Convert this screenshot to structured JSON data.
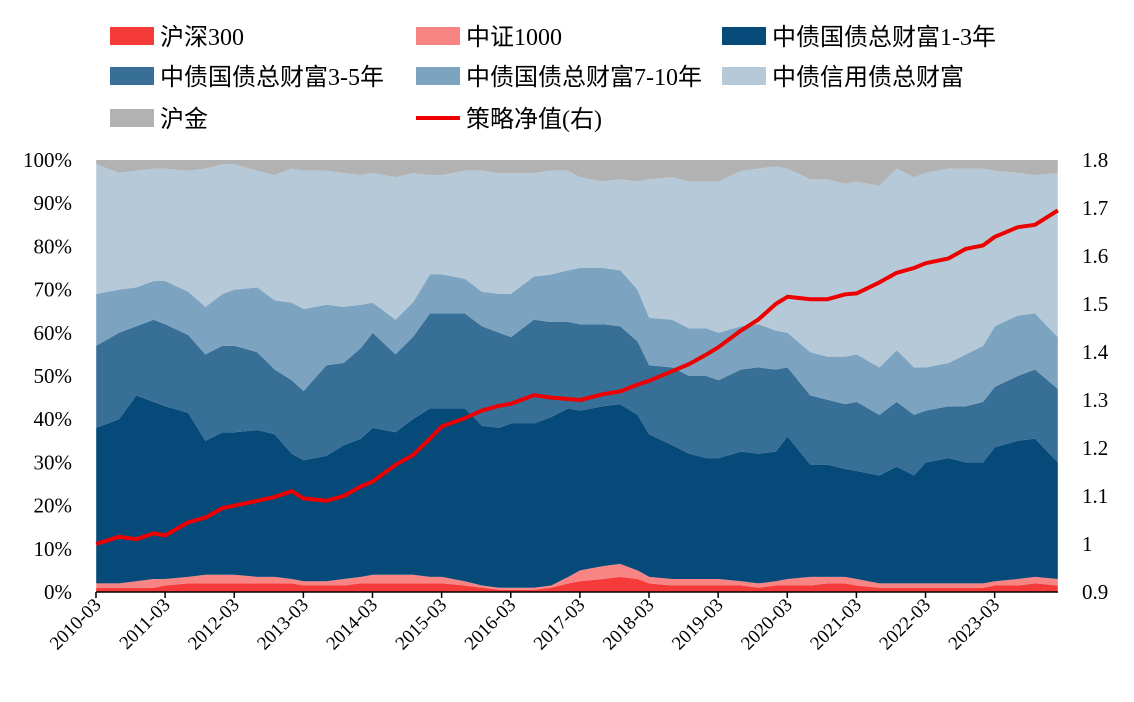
{
  "chart_data": {
    "type": "area",
    "title": "",
    "xlabel": "",
    "ylabel": "",
    "y2label": "",
    "x_tick_labels": [
      "2010-03",
      "2011-03",
      "2012-03",
      "2013-03",
      "2014-03",
      "2015-03",
      "2016-03",
      "2017-03",
      "2018-03",
      "2019-03",
      "2020-03",
      "2021-03",
      "2022-03",
      "2023-03"
    ],
    "x_range": [
      2010.167,
      2024.083
    ],
    "ylim": [
      0,
      100
    ],
    "y_tick_labels": [
      "0%",
      "10%",
      "20%",
      "30%",
      "40%",
      "50%",
      "60%",
      "70%",
      "80%",
      "90%",
      "100%"
    ],
    "y2lim": [
      0.9,
      1.8
    ],
    "y2_tick_labels": [
      "0.9",
      "1",
      "1.1",
      "1.2",
      "1.3",
      "1.4",
      "1.5",
      "1.6",
      "1.7",
      "1.8"
    ],
    "x": [
      2010.17,
      2010.5,
      2010.75,
      2011.0,
      2011.17,
      2011.5,
      2011.75,
      2012.0,
      2012.17,
      2012.5,
      2012.75,
      2013.0,
      2013.17,
      2013.5,
      2013.75,
      2014.0,
      2014.17,
      2014.5,
      2014.75,
      2015.0,
      2015.17,
      2015.5,
      2015.75,
      2016.0,
      2016.17,
      2016.5,
      2016.75,
      2017.0,
      2017.17,
      2017.5,
      2017.75,
      2018.0,
      2018.17,
      2018.5,
      2018.75,
      2019.0,
      2019.17,
      2019.5,
      2019.75,
      2020.0,
      2020.17,
      2020.5,
      2020.75,
      2021.0,
      2021.17,
      2021.5,
      2021.75,
      2022.0,
      2022.17,
      2022.5,
      2022.75,
      2023.0,
      2023.17,
      2023.5,
      2023.75,
      2024.08
    ],
    "legend": [
      {
        "name": "沪深300",
        "type": "area",
        "color": "#f53a3a"
      },
      {
        "name": "中证1000",
        "type": "area",
        "color": "#f98484"
      },
      {
        "name": "中债国债总财富1-3年",
        "type": "area",
        "color": "#064a7a"
      },
      {
        "name": "中债国债总财富3-5年",
        "type": "area",
        "color": "#386f97"
      },
      {
        "name": "中债国债总财富7-10年",
        "type": "area",
        "color": "#7ca3c0"
      },
      {
        "name": "中债信用债总财富",
        "type": "area",
        "color": "#b5c9d8"
      },
      {
        "name": "沪金",
        "type": "area",
        "color": "#b2b2b2"
      },
      {
        "name": "策略净值(右)",
        "type": "line",
        "color": "#ee0000"
      }
    ],
    "series": [
      {
        "name": "沪深300",
        "values": [
          1,
          1,
          1,
          1,
          1.5,
          2,
          2,
          2,
          2,
          2,
          2,
          2,
          1.5,
          1.5,
          1.5,
          2,
          2,
          2,
          2,
          2,
          2,
          1.5,
          1,
          0.5,
          0.5,
          0.5,
          1,
          2,
          2.5,
          3,
          3.5,
          3,
          2,
          1.5,
          1.5,
          1.5,
          1.5,
          1.5,
          1,
          1.5,
          1.5,
          1.5,
          2,
          2,
          1.5,
          1,
          1,
          1,
          1,
          1,
          1,
          1,
          1.5,
          1.5,
          2,
          1.5
        ]
      },
      {
        "name": "中证1000",
        "values": [
          1,
          1,
          1.5,
          2,
          1.5,
          1.5,
          2,
          2,
          2,
          1.5,
          1.5,
          1,
          1,
          1,
          1.5,
          1.5,
          2,
          2,
          2,
          1.5,
          1.5,
          1,
          0.5,
          0.5,
          0.5,
          0.5,
          0.5,
          1.5,
          2.5,
          3,
          3,
          2,
          1.5,
          1.5,
          1.5,
          1.5,
          1.5,
          1,
          1,
          1,
          1.5,
          2,
          1.5,
          1.5,
          1.5,
          1,
          1,
          1,
          1,
          1,
          1,
          1,
          1,
          1.5,
          1.5,
          1.5
        ]
      },
      {
        "name": "中债国债总财富1-3年",
        "values": [
          36,
          38,
          43,
          41,
          40,
          38,
          31,
          33,
          33,
          34,
          33,
          29,
          28,
          29,
          31,
          32,
          34,
          33,
          36,
          39,
          39,
          40,
          37,
          37,
          38,
          38,
          39,
          39,
          37,
          37,
          37,
          36,
          33,
          31,
          29,
          28,
          28,
          30,
          30,
          30,
          33,
          26,
          26,
          25,
          25,
          25,
          27,
          25,
          28,
          29,
          28,
          28,
          31,
          32,
          32,
          27
        ]
      },
      {
        "name": "中债国债总财富3-5年",
        "values": [
          19,
          20,
          16,
          19,
          19,
          18,
          20,
          20,
          20,
          18,
          15,
          17,
          16,
          21,
          19,
          21,
          22,
          18,
          19,
          22,
          22,
          22,
          23,
          22,
          20,
          24,
          22,
          20,
          20,
          19,
          18,
          17,
          16,
          18,
          18,
          19,
          18,
          19,
          20,
          19,
          16,
          16,
          15,
          15,
          16,
          14,
          15,
          14,
          12,
          12,
          13,
          14,
          14,
          15,
          16,
          17
        ]
      },
      {
        "name": "中债国债总财富7-10年",
        "values": [
          12,
          10,
          9,
          9,
          10,
          10,
          11,
          12,
          13,
          15,
          16,
          18,
          19,
          14,
          13,
          10,
          7,
          8,
          8,
          9,
          9,
          8,
          8,
          9,
          10,
          10,
          11,
          12,
          13,
          13,
          13,
          12,
          11,
          11,
          11,
          11,
          11,
          10,
          10,
          9,
          8,
          10,
          10,
          11,
          11,
          11,
          12,
          11,
          10,
          10,
          12,
          13,
          14,
          14,
          13,
          12
        ]
      },
      {
        "name": "中债信用债总财富",
        "values": [
          30,
          27,
          27,
          26,
          26,
          28,
          32,
          30,
          29,
          27,
          29,
          31,
          32,
          31,
          31,
          30,
          30,
          33,
          30,
          23,
          23,
          25,
          28,
          28,
          28,
          24,
          24,
          23,
          21,
          20,
          21,
          25,
          32,
          33,
          34,
          34,
          35,
          36,
          36,
          38,
          38,
          40,
          41,
          40,
          40,
          42,
          42,
          44,
          45,
          45,
          43,
          41,
          36,
          33,
          32,
          38
        ]
      },
      {
        "name": "沪金",
        "values": [
          1,
          2,
          2.5,
          2,
          2,
          2,
          2,
          2,
          2,
          2.5,
          3,
          2,
          2.5,
          2.5,
          3,
          3.5,
          3,
          3.5,
          3,
          3.5,
          3.5,
          2.5,
          2.5,
          3,
          3,
          2.5,
          2.5,
          2.5,
          4,
          5,
          4.5,
          5,
          4.5,
          4.5,
          5,
          5,
          4.5,
          2.5,
          2,
          2,
          2,
          3.5,
          3.5,
          4.5,
          5,
          6,
          2,
          4,
          3,
          2,
          2,
          2,
          3,
          3,
          3.5,
          3
        ]
      },
      {
        "name": "策略净值(右)",
        "axis": "right",
        "values": [
          1.0,
          1.015,
          1.01,
          1.022,
          1.018,
          1.045,
          1.055,
          1.075,
          1.08,
          1.09,
          1.098,
          1.11,
          1.095,
          1.09,
          1.1,
          1.12,
          1.13,
          1.165,
          1.185,
          1.22,
          1.245,
          1.262,
          1.278,
          1.288,
          1.292,
          1.31,
          1.305,
          1.302,
          1.3,
          1.312,
          1.318,
          1.332,
          1.34,
          1.36,
          1.375,
          1.395,
          1.41,
          1.445,
          1.468,
          1.5,
          1.515,
          1.51,
          1.51,
          1.52,
          1.522,
          1.545,
          1.565,
          1.575,
          1.585,
          1.595,
          1.615,
          1.622,
          1.64,
          1.66,
          1.665,
          1.695
        ]
      }
    ]
  }
}
